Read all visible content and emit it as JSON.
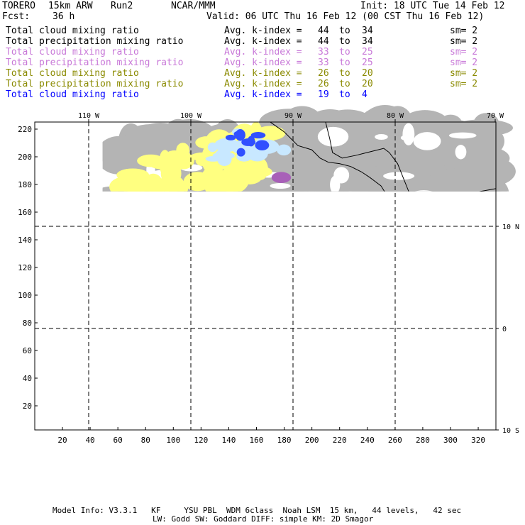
{
  "header": {
    "model": "TORERO",
    "resolution": "15km ARW",
    "run": "Run2",
    "org": "NCAR/MMM",
    "init": "Init: 18 UTC Tue 14 Feb 12",
    "fcst_label": "Fcst:",
    "fcst_hours": "36 h",
    "valid": "Valid: 06 UTC Thu 16 Feb 12 (00 CST Thu 16 Feb 12)"
  },
  "legend": [
    {
      "field": "Total cloud mixing ratio",
      "avg": "Avg. k-index =",
      "k_from": "44",
      "to": "to",
      "k_to": "34",
      "sm": "sm= 2",
      "color": "#000000"
    },
    {
      "field": "Total precipitation mixing ratio",
      "avg": "Avg. k-index =",
      "k_from": "44",
      "to": "to",
      "k_to": "34",
      "sm": "sm= 2",
      "color": "#000000"
    },
    {
      "field": "Total cloud mixing ratio",
      "avg": "Avg. k-index =",
      "k_from": "33",
      "to": "to",
      "k_to": "25",
      "sm": "sm= 2",
      "color": "#c878d8"
    },
    {
      "field": "Total precipitation mixing ratio",
      "avg": "Avg. k-index =",
      "k_from": "33",
      "to": "to",
      "k_to": "25",
      "sm": "sm= 2",
      "color": "#c878d8"
    },
    {
      "field": "Total cloud mixing ratio",
      "avg": "Avg. k-index =",
      "k_from": "26",
      "to": "to",
      "k_to": "20",
      "sm": "sm= 2",
      "color": "#8a8a00"
    },
    {
      "field": "Total precipitation mixing ratio",
      "avg": "Avg. k-index =",
      "k_from": "26",
      "to": "to",
      "k_to": "20",
      "sm": "sm= 2",
      "color": "#8a8a00"
    },
    {
      "field": "Total cloud mixing ratio",
      "avg": "Avg. k-index =",
      "k_from": "19",
      "to": "to",
      "k_to": "4",
      "sm": "",
      "color": "#0000ff"
    }
  ],
  "map": {
    "top_lon_labels": [
      "110 W",
      "100 W",
      "90 W",
      "80 W",
      "70 W"
    ],
    "right_lat_labels": [
      "10 N",
      "0",
      "10 S"
    ],
    "y_ticks": [
      "220",
      "200",
      "180",
      "160",
      "140",
      "120",
      "100",
      "80",
      "60",
      "40",
      "20"
    ],
    "x_ticks": [
      "20",
      "40",
      "60",
      "80",
      "100",
      "120",
      "140",
      "160",
      "180",
      "200",
      "220",
      "240",
      "260",
      "280",
      "300",
      "320"
    ],
    "colors": {
      "gray": "#b4b4b4",
      "purple": "#a860b8",
      "yellow": "#ffff80",
      "lightblue": "#c8e8ff",
      "blue": "#3050ff",
      "darkblue": "#0000e0"
    }
  },
  "footer": {
    "line1": "Model Info: V3.3.1   KF     YSU PBL  WDM 6class  Noah LSM  15 km,   44 levels,   42 sec",
    "line2": "LW: Godd SW: Goddard DIFF: simple KM: 2D Smagor"
  }
}
